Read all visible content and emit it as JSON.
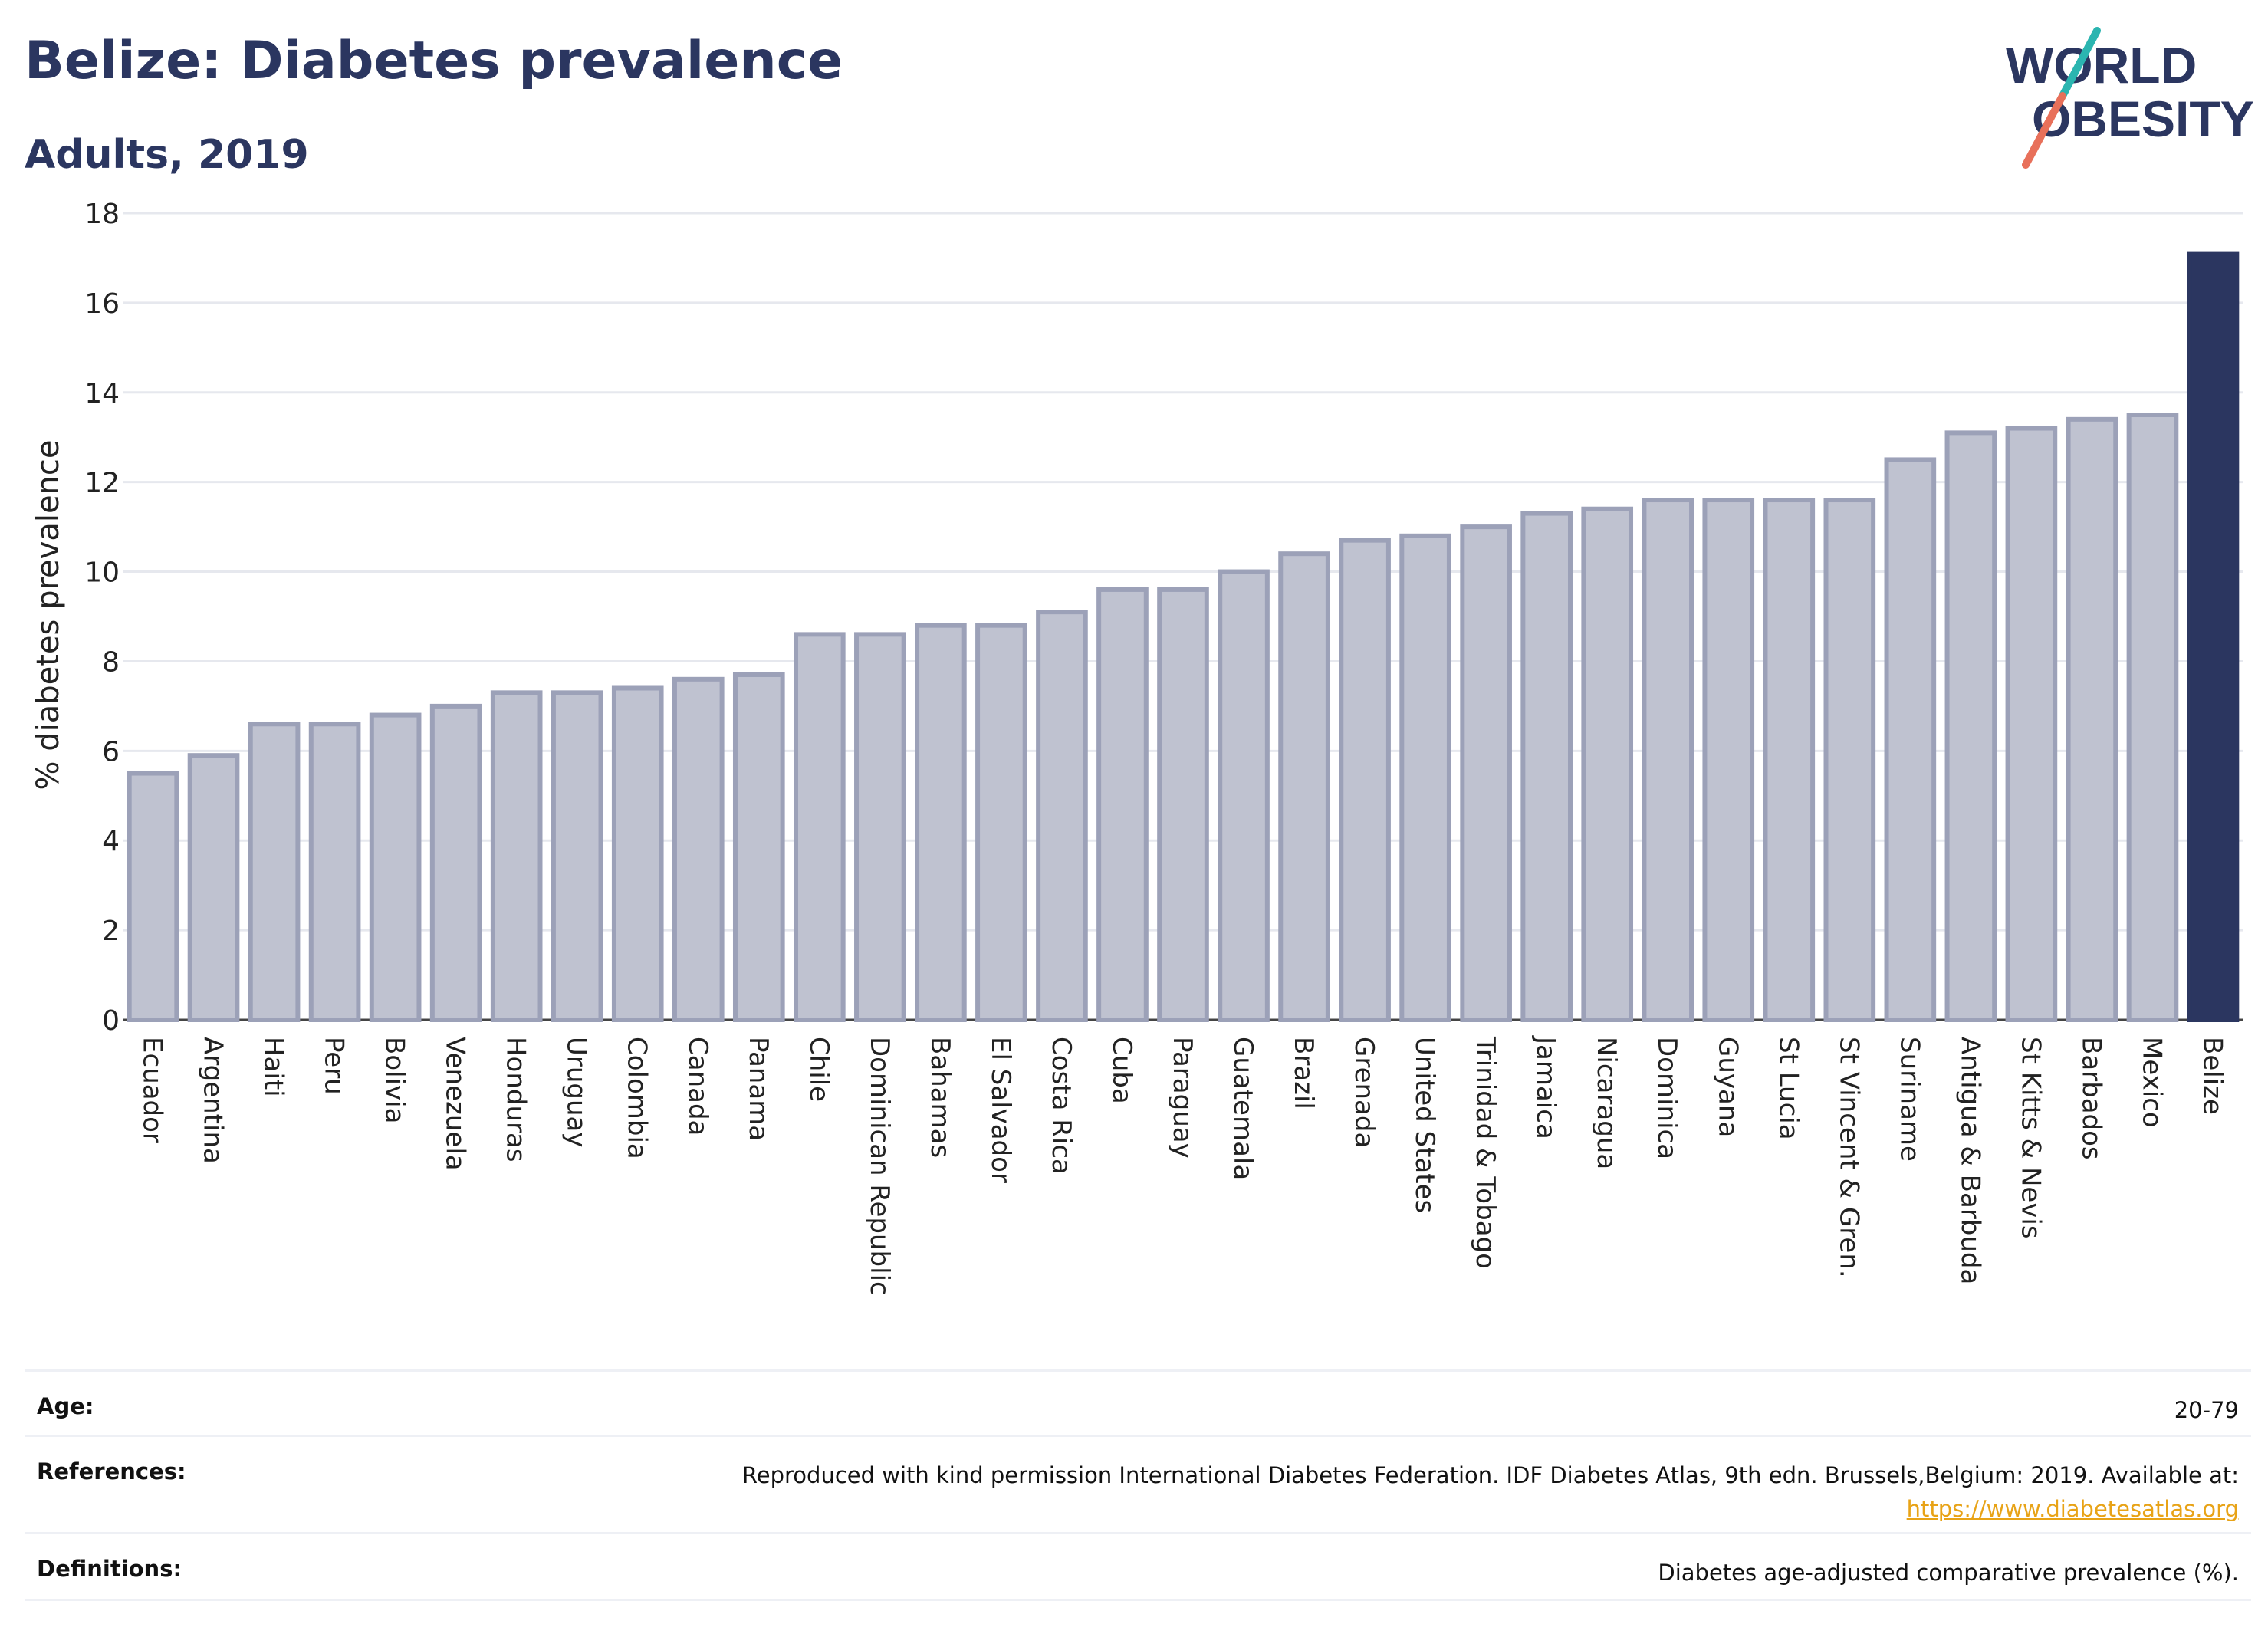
{
  "header": {
    "title": "Belize: Diabetes prevalence",
    "subtitle": "Adults, 2019"
  },
  "logo": {
    "line1": "WORLD",
    "line2": "OBESITY",
    "colors": {
      "text": "#2b3660",
      "slash_top": "#2bb5b0",
      "slash_bottom": "#e8705a"
    }
  },
  "chart_data": {
    "type": "bar",
    "ylabel": "% diabetes prevalence",
    "xlabel": "",
    "ylim": [
      0,
      18
    ],
    "yticks": [
      0,
      2,
      4,
      6,
      8,
      10,
      12,
      14,
      16,
      18
    ],
    "grid": true,
    "categories": [
      "Ecuador",
      "Argentina",
      "Haiti",
      "Peru",
      "Bolivia",
      "Venezuela",
      "Honduras",
      "Uruguay",
      "Colombia",
      "Canada",
      "Panama",
      "Chile",
      "Dominican Republic",
      "Bahamas",
      "El Salvador",
      "Costa Rica",
      "Cuba",
      "Paraguay",
      "Guatemala",
      "Brazil",
      "Grenada",
      "United States",
      "Trinidad & Tobago",
      "Jamaica",
      "Nicaragua",
      "Dominica",
      "Guyana",
      "St Lucia",
      "St Vincent & Gren.",
      "Suriname",
      "Antigua & Barbuda",
      "St Kitts & Nevis",
      "Barbados",
      "Mexico",
      "Belize"
    ],
    "values": [
      5.5,
      5.9,
      6.6,
      6.6,
      6.8,
      7.0,
      7.3,
      7.3,
      7.4,
      7.6,
      7.7,
      8.6,
      8.6,
      8.8,
      8.8,
      9.1,
      9.6,
      9.6,
      10.0,
      10.4,
      10.7,
      10.8,
      11.0,
      11.3,
      11.4,
      11.6,
      11.6,
      11.6,
      11.6,
      12.5,
      13.1,
      13.2,
      13.4,
      13.5,
      17.1
    ],
    "highlight": "Belize",
    "colors": {
      "bar": "#bfc2d0",
      "bar_edge": "#9ca1b8",
      "highlight": "#2b3660",
      "grid": "#e6e8ee"
    }
  },
  "footer": {
    "age_label": "Age:",
    "age_value": "20-79",
    "references_label": "References:",
    "references_text": "Reproduced with kind permission International Diabetes Federation. IDF Diabetes Atlas, 9th edn. Brussels,Belgium: 2019. Available at:",
    "references_link": "https://www.diabetesatlas.org",
    "definitions_label": "Definitions:",
    "definitions_value": "Diabetes age-adjusted comparative prevalence (%)."
  }
}
